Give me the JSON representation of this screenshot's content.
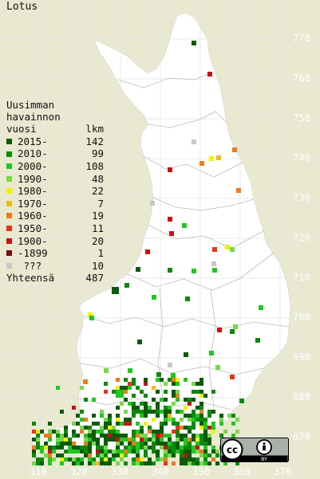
{
  "title": "Lotus",
  "legend": {
    "header_lines": [
      "Uusimman",
      "havainnon",
      "vuosi"
    ],
    "count_header": "lkm",
    "rows": [
      {
        "label": "2015-",
        "count": "142",
        "color": "#0a5a0a"
      },
      {
        "label": "2010-",
        "count": "99",
        "color": "#0a8a0a"
      },
      {
        "label": "2000-",
        "count": "108",
        "color": "#1ec81e"
      },
      {
        "label": "1990-",
        "count": "48",
        "color": "#7ad84a"
      },
      {
        "label": "1980-",
        "count": "22",
        "color": "#f2f200"
      },
      {
        "label": "1970-",
        "count": "7",
        "color": "#f0bc1a"
      },
      {
        "label": "1960-",
        "count": "19",
        "color": "#f07a18"
      },
      {
        "label": "1950-",
        "count": "11",
        "color": "#e83418"
      },
      {
        "label": "1900-",
        "count": "20",
        "color": "#c81010"
      },
      {
        "label": "-1899",
        "count": "1",
        "color": "#7a0a0a"
      },
      {
        "label": " ???",
        "count": "10",
        "color": "#c8c8c8"
      }
    ],
    "total_label": "Yhteensä",
    "total_count": "487"
  },
  "y_ticks": [
    "770",
    "760",
    "750",
    "740",
    "730",
    "720",
    "710",
    "700",
    "690",
    "680",
    "670"
  ],
  "x_ticks": [
    "310",
    "320",
    "330",
    "340",
    "350",
    "360",
    "370"
  ],
  "license_badge": {
    "name": "cc-by-icon",
    "cc": "cc",
    "by": "BY"
  },
  "colors": {
    "background": "#e9e9d2",
    "land": "#ffffff",
    "grid": "#e0e0e0",
    "border": "#b4b4b4"
  }
}
